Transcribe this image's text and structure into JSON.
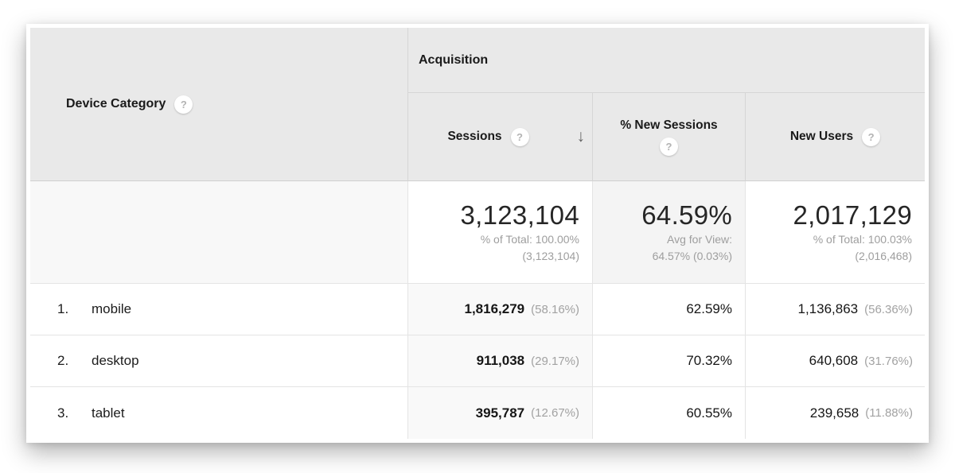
{
  "table": {
    "dimension_header": {
      "label": "Device Category",
      "help_icon": "?"
    },
    "group_header": {
      "label": "Acquisition"
    },
    "columns": {
      "sessions": {
        "label": "Sessions",
        "help_icon": "?",
        "sort_icon": "↓",
        "sort": "descending"
      },
      "new_sessions": {
        "label": "% New Sessions",
        "help_icon": "?"
      },
      "new_users": {
        "label": "New Users",
        "help_icon": "?"
      }
    },
    "summary": {
      "sessions": {
        "value": "3,123,104",
        "sub1": "% of Total: 100.00%",
        "sub2": "(3,123,104)"
      },
      "new_sessions": {
        "value": "64.59%",
        "sub1": "Avg for View:",
        "sub2": "64.57% (0.03%)"
      },
      "new_users": {
        "value": "2,017,129",
        "sub1": "% of Total: 100.03%",
        "sub2": "(2,016,468)"
      }
    },
    "rows": [
      {
        "index": "1.",
        "label": "mobile",
        "sessions": "1,816,279",
        "sessions_pct": "(58.16%)",
        "new_sessions": "62.59%",
        "new_users": "1,136,863",
        "new_users_pct": "(56.36%)"
      },
      {
        "index": "2.",
        "label": "desktop",
        "sessions": "911,038",
        "sessions_pct": "(29.17%)",
        "new_sessions": "70.32%",
        "new_users": "640,608",
        "new_users_pct": "(31.76%)"
      },
      {
        "index": "3.",
        "label": "tablet",
        "sessions": "395,787",
        "sessions_pct": "(12.67%)",
        "new_sessions": "60.55%",
        "new_users": "239,658",
        "new_users_pct": "(11.88%)"
      }
    ],
    "colors": {
      "header_bg": "#e9e9e9",
      "sorted_column_bg": "#f9f9f9",
      "summary_avg_bg": "#f4f4f4",
      "summary_dimension_bg": "#f8f8f8",
      "header_border": "#d6d6d6",
      "body_border": "#e4e4e4",
      "primary_text": "#1c1c1c",
      "secondary_text": "#9e9e9e",
      "help_icon_color": "#b3b3b3"
    }
  }
}
